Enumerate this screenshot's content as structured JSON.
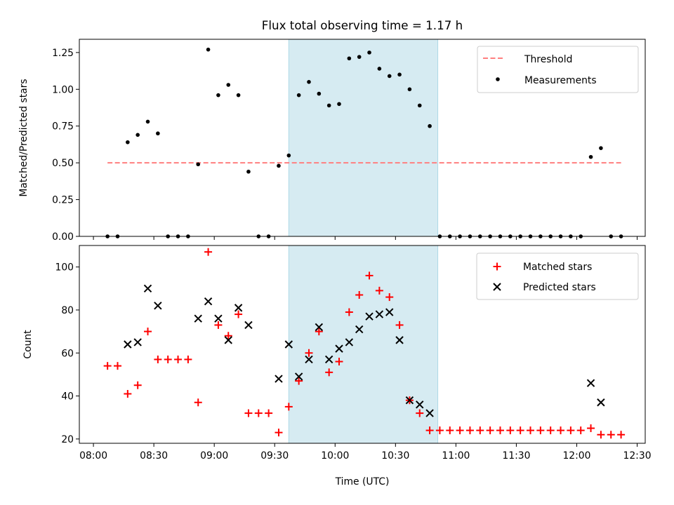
{
  "chart_data": [
    {
      "type": "scatter",
      "title": "Flux total observing time = 1.17 h",
      "xlabel": "",
      "ylabel": "Matched/Predicted stars",
      "ylim": [
        0,
        1.34
      ],
      "yticks": [
        "0.00",
        "0.25",
        "0.50",
        "0.75",
        "1.00",
        "1.25"
      ],
      "ytick_values": [
        0,
        0.25,
        0.5,
        0.75,
        1.0,
        1.25
      ],
      "highlight_span": {
        "start": "09:37",
        "end": "10:51",
        "color": "#add8e6"
      },
      "legend": {
        "placement": "upper-right",
        "entries": [
          "Threshold",
          "Measurements"
        ]
      },
      "series": [
        {
          "name": "Threshold",
          "kind": "dashed-line",
          "color": "#ff7f7f",
          "x": [
            "08:07",
            "12:22"
          ],
          "values": [
            0.5,
            0.5
          ]
        },
        {
          "name": "Measurements",
          "kind": "dot",
          "color": "#000000",
          "x": [
            "08:07",
            "08:12",
            "08:17",
            "08:22",
            "08:27",
            "08:32",
            "08:37",
            "08:42",
            "08:47",
            "08:52",
            "08:57",
            "09:02",
            "09:07",
            "09:12",
            "09:17",
            "09:22",
            "09:27",
            "09:32",
            "09:37",
            "09:42",
            "09:47",
            "09:52",
            "09:57",
            "10:02",
            "10:07",
            "10:12",
            "10:17",
            "10:22",
            "10:27",
            "10:32",
            "10:37",
            "10:42",
            "10:47",
            "10:52",
            "10:57",
            "11:02",
            "11:07",
            "11:12",
            "11:17",
            "11:22",
            "11:27",
            "11:32",
            "11:37",
            "11:42",
            "11:47",
            "11:52",
            "11:57",
            "12:02",
            "12:07",
            "12:12",
            "12:17",
            "12:22"
          ],
          "values": [
            0,
            0,
            0.64,
            0.69,
            0.78,
            0.7,
            0,
            0,
            0,
            0.49,
            1.27,
            0.96,
            1.03,
            0.96,
            0.44,
            0,
            0,
            0.48,
            0.55,
            0.96,
            1.05,
            0.97,
            0.89,
            0.9,
            1.21,
            1.22,
            1.25,
            1.14,
            1.09,
            1.1,
            1.0,
            0.89,
            0.75,
            0,
            0,
            0,
            0,
            0,
            0,
            0,
            0,
            0,
            0,
            0,
            0,
            0,
            0,
            0,
            0.54,
            0.6,
            0,
            0
          ]
        }
      ]
    },
    {
      "type": "scatter",
      "title": "",
      "xlabel": "Time (UTC)",
      "ylabel": "Count",
      "ylim": [
        18,
        110
      ],
      "yticks": [
        "20",
        "40",
        "60",
        "80",
        "100"
      ],
      "ytick_values": [
        20,
        40,
        60,
        80,
        100
      ],
      "xticks": [
        "08:00",
        "08:30",
        "09:00",
        "09:30",
        "10:00",
        "10:30",
        "11:00",
        "11:30",
        "12:00",
        "12:30"
      ],
      "highlight_span": {
        "start": "09:37",
        "end": "10:51",
        "color": "#add8e6"
      },
      "legend": {
        "placement": "upper-right",
        "entries": [
          "Matched stars",
          "Predicted stars"
        ]
      },
      "series": [
        {
          "name": "Matched stars",
          "kind": "plus",
          "color": "#ff0000",
          "x": [
            "08:07",
            "08:12",
            "08:17",
            "08:22",
            "08:27",
            "08:32",
            "08:37",
            "08:42",
            "08:47",
            "08:52",
            "08:57",
            "09:02",
            "09:07",
            "09:12",
            "09:17",
            "09:22",
            "09:27",
            "09:32",
            "09:37",
            "09:42",
            "09:47",
            "09:52",
            "09:57",
            "10:02",
            "10:07",
            "10:12",
            "10:17",
            "10:22",
            "10:27",
            "10:32",
            "10:37",
            "10:42",
            "10:47",
            "10:52",
            "10:57",
            "11:02",
            "11:07",
            "11:12",
            "11:17",
            "11:22",
            "11:27",
            "11:32",
            "11:37",
            "11:42",
            "11:47",
            "11:52",
            "11:57",
            "12:02",
            "12:07",
            "12:12",
            "12:17",
            "12:22"
          ],
          "values": [
            54,
            54,
            41,
            45,
            70,
            57,
            57,
            57,
            57,
            37,
            107,
            73,
            68,
            78,
            32,
            32,
            32,
            23,
            35,
            47,
            60,
            70,
            51,
            56,
            79,
            87,
            96,
            89,
            86,
            73,
            38,
            32,
            24,
            24,
            24,
            24,
            24,
            24,
            24,
            24,
            24,
            24,
            24,
            24,
            24,
            24,
            24,
            24,
            25,
            22,
            22,
            22
          ]
        },
        {
          "name": "Predicted stars",
          "kind": "x",
          "color": "#000000",
          "x": [
            "08:17",
            "08:22",
            "08:27",
            "08:32",
            "08:52",
            "08:57",
            "09:02",
            "09:07",
            "09:12",
            "09:17",
            "09:32",
            "09:37",
            "09:42",
            "09:47",
            "09:52",
            "09:57",
            "10:02",
            "10:07",
            "10:12",
            "10:17",
            "10:22",
            "10:27",
            "10:32",
            "10:37",
            "10:42",
            "10:47",
            "12:07",
            "12:12"
          ],
          "values": [
            64,
            65,
            90,
            82,
            76,
            84,
            76,
            66,
            81,
            73,
            48,
            64,
            49,
            57,
            72,
            57,
            62,
            65,
            71,
            77,
            78,
            79,
            66,
            38,
            36,
            32,
            46,
            37
          ]
        }
      ]
    }
  ]
}
